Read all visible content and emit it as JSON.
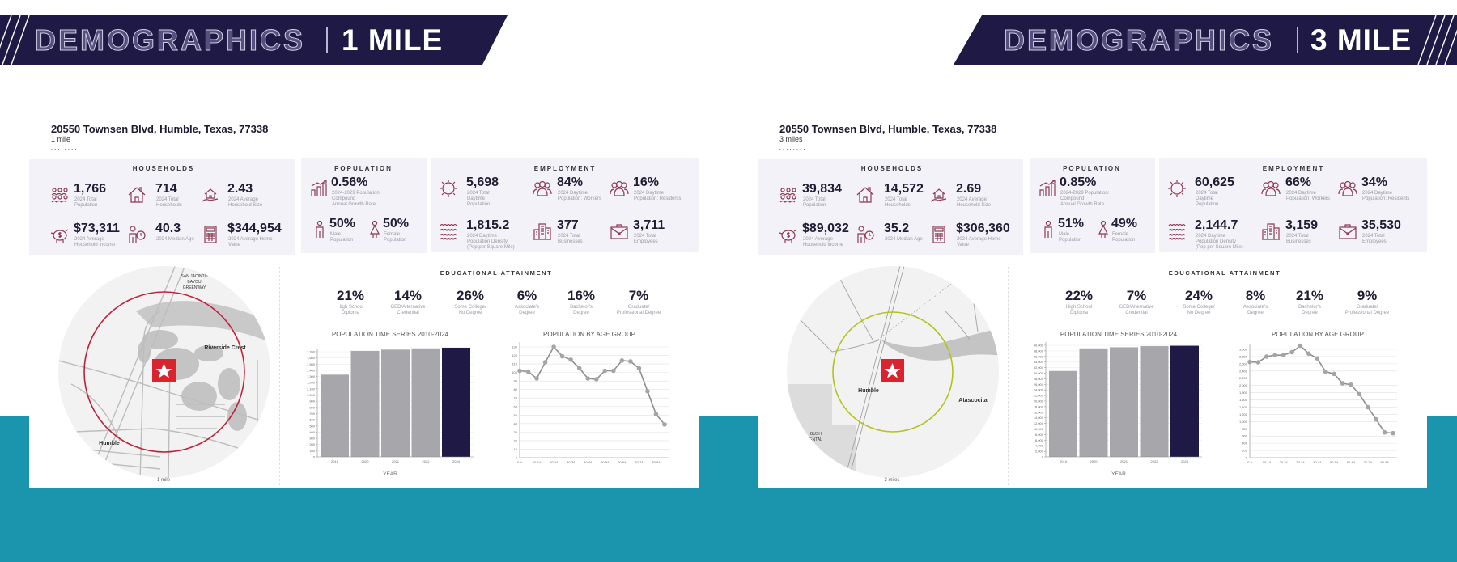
{
  "colors": {
    "navy": "#1f1a45",
    "teal": "#1b95ad",
    "panel": "#f3f2f8",
    "icon": "#8e3a52",
    "ring_1_mile": "#c0203a",
    "ring_3_mile": "#b7c11c",
    "star_box": "#d9242f",
    "bar": "#a7a6ab",
    "bar_current": "#1f1a45",
    "line": "#8f8f93"
  },
  "pages": [
    {
      "banner": {
        "title": "DEMOGRAPHICS",
        "radius": "1 MILE"
      },
      "address": "20550 Townsen Blvd, Humble, Texas, 77338",
      "radius_label": "1 mile",
      "tick_marks": ",,,,,,,,",
      "households": {
        "title": "HOUSEHOLDS",
        "stats": [
          {
            "value": "1,766",
            "label": "2024 Total\nPopulation",
            "icon": "crowd-icon"
          },
          {
            "value": "714",
            "label": "2024 Total\nHouseholds",
            "icon": "house-icon"
          },
          {
            "value": "2.43",
            "label": "2024 Average\nHousehold Size",
            "icon": "hand-house-icon"
          },
          {
            "value": "$73,311",
            "label": "2024 Average\nHousehold Income",
            "icon": "piggy-bank-icon"
          },
          {
            "value": "40.3",
            "label": "2024 Median Age",
            "icon": "person-clock-icon"
          },
          {
            "value": "$344,954",
            "label": "2024 Average Home\nValue",
            "icon": "calculator-icon"
          }
        ]
      },
      "population": {
        "title": "POPULATION",
        "stats": [
          {
            "value": "0.56%",
            "label": "2024-2029 Population: Compound\nAnnual Growth Rate",
            "icon": "growth-chart-icon"
          },
          {
            "value": "50%",
            "label": "Male\nPopulation",
            "icon": "male-icon"
          },
          {
            "value": "50%",
            "label": "Female\nPopulation",
            "icon": "female-icon"
          }
        ]
      },
      "employment": {
        "title": "EMPLOYMENT",
        "stats": [
          {
            "value": "5,698",
            "label": "2024 Total\nDaytime\nPopulation",
            "icon": "sun-icon"
          },
          {
            "value": "84%",
            "label": "2024 Daytime\nPopulation: Workers",
            "icon": "group-icon"
          },
          {
            "value": "16%",
            "label": "2024 Daytime\nPopulation: Residents",
            "icon": "group-icon"
          },
          {
            "value": "1,815.2",
            "label": "2024 Daytime\nPopulation Density\n(Pop per Square Mile)",
            "icon": "density-icon"
          },
          {
            "value": "377",
            "label": "2024 Total\nBusinesses",
            "icon": "building-icon"
          },
          {
            "value": "3,711",
            "label": "2024 Total\nEmployees",
            "icon": "briefcase-icon"
          }
        ]
      },
      "education": {
        "title": "EDUCATIONAL ATTAINMENT",
        "items": [
          {
            "value": "21%",
            "label": "High School\nDiploma"
          },
          {
            "value": "14%",
            "label": "GED/Alternative\nCredential"
          },
          {
            "value": "26%",
            "label": "Some College/\nNo Degree"
          },
          {
            "value": "6%",
            "label": "Associate's\nDegree"
          },
          {
            "value": "16%",
            "label": "Bachelor's\nDegree"
          },
          {
            "value": "7%",
            "label": "Graduate/\nProfessional Degree"
          }
        ]
      },
      "map": {
        "labels": [
          "SAN JACINTO",
          "BAYOU",
          "GREENWAY",
          "Riverside Crest",
          "Humble"
        ],
        "scale_label": "1 mile"
      }
    },
    {
      "banner": {
        "title": "DEMOGRAPHICS",
        "radius": "3 MILE"
      },
      "address": "20550 Townsen Blvd, Humble, Texas, 77338",
      "radius_label": "3 miles",
      "tick_marks": ",,,,,,,,",
      "households": {
        "title": "HOUSEHOLDS",
        "stats": [
          {
            "value": "39,834",
            "label": "2024 Total\nPopulation",
            "icon": "crowd-icon"
          },
          {
            "value": "14,572",
            "label": "2024 Total\nHouseholds",
            "icon": "house-icon"
          },
          {
            "value": "2.69",
            "label": "2024 Average\nHousehold Size",
            "icon": "hand-house-icon"
          },
          {
            "value": "$89,032",
            "label": "2024 Average\nHousehold Income",
            "icon": "piggy-bank-icon"
          },
          {
            "value": "35.2",
            "label": "2024 Median Age",
            "icon": "person-clock-icon"
          },
          {
            "value": "$306,360",
            "label": "2024 Average Home\nValue",
            "icon": "calculator-icon"
          }
        ]
      },
      "population": {
        "title": "POPULATION",
        "stats": [
          {
            "value": "0.85%",
            "label": "2024-2029 Population: Compound\nAnnual Growth Rate",
            "icon": "growth-chart-icon"
          },
          {
            "value": "51%",
            "label": "Male\nPopulation",
            "icon": "male-icon"
          },
          {
            "value": "49%",
            "label": "Female\nPopulation",
            "icon": "female-icon"
          }
        ]
      },
      "employment": {
        "title": "EMPLOYMENT",
        "stats": [
          {
            "value": "60,625",
            "label": "2024 Total\nDaytime\nPopulation",
            "icon": "sun-icon"
          },
          {
            "value": "66%",
            "label": "2024 Daytime\nPopulation: Workers",
            "icon": "group-icon"
          },
          {
            "value": "34%",
            "label": "2024 Daytime\nPopulation: Residents",
            "icon": "group-icon"
          },
          {
            "value": "2,144.7",
            "label": "2024 Daytime\nPopulation Density\n(Pop per Square Mile)",
            "icon": "density-icon"
          },
          {
            "value": "3,159",
            "label": "2024 Total\nBusinesses",
            "icon": "building-icon"
          },
          {
            "value": "35,530",
            "label": "2024 Total\nEmployees",
            "icon": "briefcase-icon"
          }
        ]
      },
      "education": {
        "title": "EDUCATIONAL ATTAINMENT",
        "items": [
          {
            "value": "22%",
            "label": "High School\nDiploma"
          },
          {
            "value": "7%",
            "label": "GED/Alternative\nCredential"
          },
          {
            "value": "24%",
            "label": "Some College/\nNo Degree"
          },
          {
            "value": "8%",
            "label": "Associate's\nDegree"
          },
          {
            "value": "21%",
            "label": "Bachelor's\nDegree"
          },
          {
            "value": "9%",
            "label": "Graduate/\nProfessional Degree"
          }
        ]
      },
      "map": {
        "labels": [
          "Humble",
          "Atascocita",
          "BUSH",
          "ENTAL"
        ],
        "scale_label": "3 miles"
      }
    }
  ],
  "chart_data": [
    {
      "type": "bar",
      "title": "POPULATION TIME SERIES 2010-2024",
      "xlabel": "YEAR",
      "ylabel": "",
      "categories": [
        "2010",
        "2020",
        "2021",
        "2022",
        "2024"
      ],
      "values": [
        1330,
        1715,
        1735,
        1755,
        1766
      ],
      "ylim": [
        0,
        1700
      ],
      "ytick_labels": [
        "0",
        "100",
        "200",
        "300",
        "400",
        "500",
        "600",
        "700",
        "800",
        "900",
        "1,000",
        "1,100",
        "1,200",
        "1,300",
        "1,400",
        "1,500",
        "1,600",
        "1,700"
      ],
      "grid": true
    },
    {
      "type": "line",
      "title": "POPULATION BY AGE GROUP",
      "xlabel": "",
      "ylabel": "",
      "values": [
        102,
        101,
        93,
        112,
        130,
        119,
        115,
        105,
        93,
        92,
        102,
        102,
        114,
        113,
        105,
        78,
        51,
        39
      ],
      "x_tick_labels": [
        "0-4",
        "10-14",
        "20-24",
        "30-34",
        "40-44",
        "50-54",
        "60-64",
        "70-74",
        "80-84"
      ],
      "ylim": [
        0,
        130
      ],
      "ytick_labels": [
        "0",
        "10",
        "20",
        "30",
        "40",
        "50",
        "60",
        "70",
        "80",
        "90",
        "100",
        "110",
        "120",
        "130"
      ],
      "grid": true
    },
    {
      "type": "bar",
      "title": "POPULATION TIME SERIES 2010-2024",
      "xlabel": "YEAR",
      "ylabel": "",
      "categories": [
        "2010",
        "2020",
        "2021",
        "2022",
        "2024"
      ],
      "values": [
        30800,
        38900,
        39300,
        39700,
        39834
      ],
      "ylim": [
        0,
        40000
      ],
      "ytick_labels": [
        "0",
        "2,000",
        "4,000",
        "6,000",
        "8,000",
        "10,000",
        "12,000",
        "14,000",
        "16,000",
        "18,000",
        "20,000",
        "22,000",
        "24,000",
        "26,000",
        "28,000",
        "30,000",
        "32,000",
        "34,000",
        "36,000",
        "38,000",
        "40,000"
      ],
      "grid": true
    },
    {
      "type": "line",
      "title": "POPULATION BY AGE GROUP",
      "xlabel": "",
      "ylabel": "",
      "values": [
        2650,
        2640,
        2800,
        2840,
        2840,
        2920,
        3100,
        2880,
        2750,
        2380,
        2320,
        2060,
        2020,
        1760,
        1400,
        1060,
        700,
        680
      ],
      "x_tick_labels": [
        "0-4",
        "10-14",
        "20-24",
        "30-34",
        "40-44",
        "50-54",
        "60-64",
        "70-74",
        "80-84"
      ],
      "ylim": [
        0,
        3000
      ],
      "ytick_labels": [
        "0",
        "200",
        "400",
        "600",
        "800",
        "1,000",
        "1,200",
        "1,400",
        "1,600",
        "1,800",
        "2,000",
        "2,200",
        "2,400",
        "2,600",
        "2,800",
        "3,000"
      ],
      "grid": true
    }
  ]
}
